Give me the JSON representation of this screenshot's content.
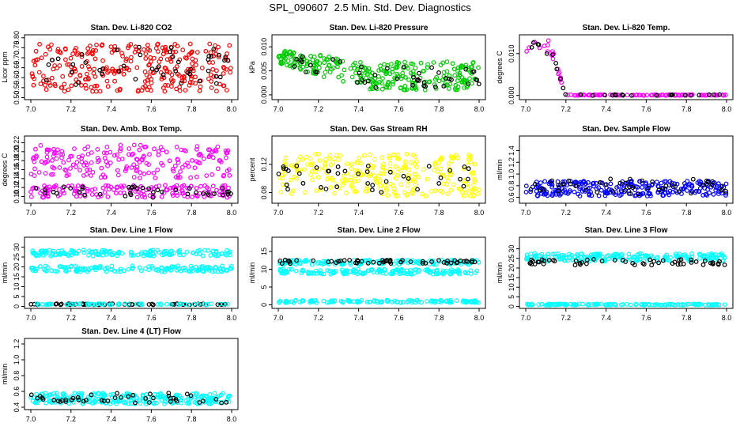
{
  "page_title": "SPL_090607  2.5 Min. Std. Dev. Diagnostics",
  "chart_data": [
    {
      "type": "scatter",
      "title": "Stan. Dev. Li-820 CO2",
      "ylabel": "Licor ppm",
      "xlim": [
        7.0,
        8.0
      ],
      "ylim": [
        0.49,
        0.815
      ],
      "xticks": [
        "7.0",
        "7.2",
        "7.4",
        "7.6",
        "7.8",
        "8.0"
      ],
      "yticks": [
        "0.50",
        "0.55",
        "0.60",
        "0.65",
        "0.70",
        "0.75",
        "0.80"
      ],
      "series": [
        {
          "color": "#ff0000",
          "pattern": "cloud",
          "range": [
            0.53,
            0.77
          ],
          "n": 300
        },
        {
          "color": "#000000",
          "pattern": "cloud",
          "range": [
            0.56,
            0.76
          ],
          "n": 45
        }
      ]
    },
    {
      "type": "scatter",
      "title": "Stan. Dev. Li-820 Pressure",
      "ylabel": "kPa",
      "xlim": [
        7.0,
        8.0
      ],
      "ylim": [
        -0.001,
        0.0125
      ],
      "xticks": [
        "7.0",
        "7.2",
        "7.4",
        "7.6",
        "7.8",
        "8.0"
      ],
      "yticks": [
        "0.000",
        "0.005",
        "0.010"
      ],
      "series": [
        {
          "color": "#00cc00",
          "pattern": "decay",
          "start": [
            0.0065,
            0.0095
          ],
          "end": [
            0.001,
            0.007
          ],
          "n": 300
        },
        {
          "color": "#000000",
          "pattern": "decay",
          "start": [
            0.006,
            0.0095
          ],
          "end": [
            0.0015,
            0.006
          ],
          "n": 45
        }
      ]
    },
    {
      "type": "scatter",
      "title": "Stan. Dev. Li-820 Temp.",
      "ylabel": "degrees C",
      "xlim": [
        7.0,
        8.0
      ],
      "ylim": [
        -0.001,
        0.0145
      ],
      "xticks": [
        "7.0",
        "7.2",
        "7.4",
        "7.6",
        "7.8",
        "8.0"
      ],
      "yticks": [
        "0.000",
        "0.010"
      ],
      "series": [
        {
          "color": "#ff00ff",
          "pattern": "drop",
          "high": [
            0.0105,
            0.0135
          ],
          "n": 120
        },
        {
          "color": "#000000",
          "pattern": "drop",
          "high": [
            0.01,
            0.013
          ],
          "n": 30
        }
      ]
    },
    {
      "type": "scatter",
      "title": "Stan. Dev. Amb. Box Temp.",
      "ylabel": "degrees C",
      "xlim": [
        7.0,
        8.0
      ],
      "ylim": [
        0.085,
        0.235
      ],
      "xticks": [
        "7.0",
        "7.2",
        "7.4",
        "7.6",
        "7.8",
        "8.0"
      ],
      "yticks": [
        "0.10",
        "0.12",
        "0.14",
        "0.16",
        "0.18",
        "0.20",
        "0.22"
      ],
      "series": [
        {
          "color": "#ff00ff",
          "pattern": "band",
          "range": [
            0.14,
            0.215
          ],
          "n": 200
        },
        {
          "color": "#ff00ff",
          "pattern": "band",
          "range": [
            0.098,
            0.125
          ],
          "n": 150
        },
        {
          "color": "#000000",
          "pattern": "band",
          "range": [
            0.098,
            0.122
          ],
          "n": 40
        }
      ]
    },
    {
      "type": "scatter",
      "title": "Stan. Dev. Gas Stream RH",
      "ylabel": "percent",
      "xlim": [
        7.0,
        8.0
      ],
      "ylim": [
        0.065,
        0.16
      ],
      "xticks": [
        "7.0",
        "7.2",
        "7.4",
        "7.6",
        "7.8",
        "8.0"
      ],
      "yticks": [
        "0.08",
        "0.12"
      ],
      "series": [
        {
          "color": "#ffff00",
          "pattern": "cloud",
          "range": [
            0.075,
            0.135
          ],
          "n": 260
        },
        {
          "color": "#000000",
          "pattern": "cloud",
          "range": [
            0.08,
            0.12
          ],
          "n": 40
        }
      ]
    },
    {
      "type": "scatter",
      "title": "Stan. Dev. Sample Flow",
      "ylabel": "ml/min",
      "xlim": [
        7.0,
        8.0
      ],
      "ylim": [
        0.5,
        1.65
      ],
      "xticks": [
        "7.0",
        "7.2",
        "7.4",
        "7.6",
        "7.8",
        "8.0"
      ],
      "yticks": [
        "0.6",
        "0.8",
        "1.0",
        "1.2",
        "1.4"
      ],
      "series": [
        {
          "color": "#0000ff",
          "pattern": "band",
          "range": [
            0.62,
            0.88
          ],
          "n": 260
        },
        {
          "color": "#000000",
          "pattern": "band",
          "range": [
            0.65,
            0.92
          ],
          "n": 45
        }
      ]
    },
    {
      "type": "scatter",
      "title": "Stan. Dev. Line 1 Flow",
      "ylabel": "ml/min",
      "xlim": [
        7.0,
        8.0
      ],
      "ylim": [
        -1,
        35
      ],
      "xticks": [
        "7.0",
        "7.2",
        "7.4",
        "7.6",
        "7.8",
        "8.0"
      ],
      "yticks": [
        "0",
        "5",
        "10",
        "15",
        "20",
        "25",
        "30"
      ],
      "series": [
        {
          "color": "#00ffff",
          "pattern": "band",
          "range": [
            25.5,
            28.5
          ],
          "n": 150
        },
        {
          "color": "#00ffff",
          "pattern": "band",
          "range": [
            17.5,
            20.5
          ],
          "n": 150
        },
        {
          "color": "#000000",
          "pattern": "band",
          "range": [
            0.8,
            1.4
          ],
          "n": 60
        },
        {
          "color": "#00ffff",
          "pattern": "band",
          "range": [
            0.8,
            1.4
          ],
          "n": 60
        }
      ]
    },
    {
      "type": "scatter",
      "title": "Stan. Dev. Line 2 Flow",
      "ylabel": "ml/min",
      "xlim": [
        7.0,
        8.0
      ],
      "ylim": [
        -1,
        19
      ],
      "xticks": [
        "7.0",
        "7.2",
        "7.4",
        "7.6",
        "7.8",
        "8.0"
      ],
      "yticks": [
        "0",
        "5",
        "10",
        "15"
      ],
      "series": [
        {
          "color": "#00ffff",
          "pattern": "band",
          "range": [
            11.3,
            12.6
          ],
          "n": 150
        },
        {
          "color": "#000000",
          "pattern": "band",
          "range": [
            11.6,
            12.6
          ],
          "n": 55
        },
        {
          "color": "#00ffff",
          "pattern": "band",
          "range": [
            8.6,
            10.0
          ],
          "n": 150
        },
        {
          "color": "#00ffff",
          "pattern": "band",
          "range": [
            0.6,
            1.3
          ],
          "n": 120
        }
      ]
    },
    {
      "type": "scatter",
      "title": "Stan. Dev. Line 3 Flow",
      "ylabel": "ml/min",
      "xlim": [
        7.0,
        8.0
      ],
      "ylim": [
        -1,
        36
      ],
      "xticks": [
        "7.0",
        "7.2",
        "7.4",
        "7.6",
        "7.8",
        "8.0"
      ],
      "yticks": [
        "0",
        "5",
        "10",
        "15",
        "20",
        "25",
        "30"
      ],
      "series": [
        {
          "color": "#00ffff",
          "pattern": "band",
          "range": [
            23.5,
            27.5
          ],
          "n": 200
        },
        {
          "color": "#000000",
          "pattern": "band",
          "range": [
            21.5,
            24.5
          ],
          "n": 55
        },
        {
          "color": "#00ffff",
          "pattern": "band",
          "range": [
            0.7,
            1.3
          ],
          "n": 120
        }
      ]
    },
    {
      "type": "scatter",
      "title": "Stan. Dev. Line 4 (LT) Flow",
      "ylabel": "ml/min",
      "xlim": [
        7.0,
        8.0
      ],
      "ylim": [
        0.37,
        1.27
      ],
      "xticks": [
        "7.0",
        "7.2",
        "7.4",
        "7.6",
        "7.8",
        "8.0"
      ],
      "yticks": [
        "0.4",
        "0.6",
        "0.8",
        "1.0",
        "1.2"
      ],
      "series": [
        {
          "color": "#00ffff",
          "pattern": "band",
          "range": [
            0.44,
            0.58
          ],
          "n": 260
        },
        {
          "color": "#000000",
          "pattern": "band",
          "range": [
            0.45,
            0.58
          ],
          "n": 45
        }
      ]
    }
  ]
}
